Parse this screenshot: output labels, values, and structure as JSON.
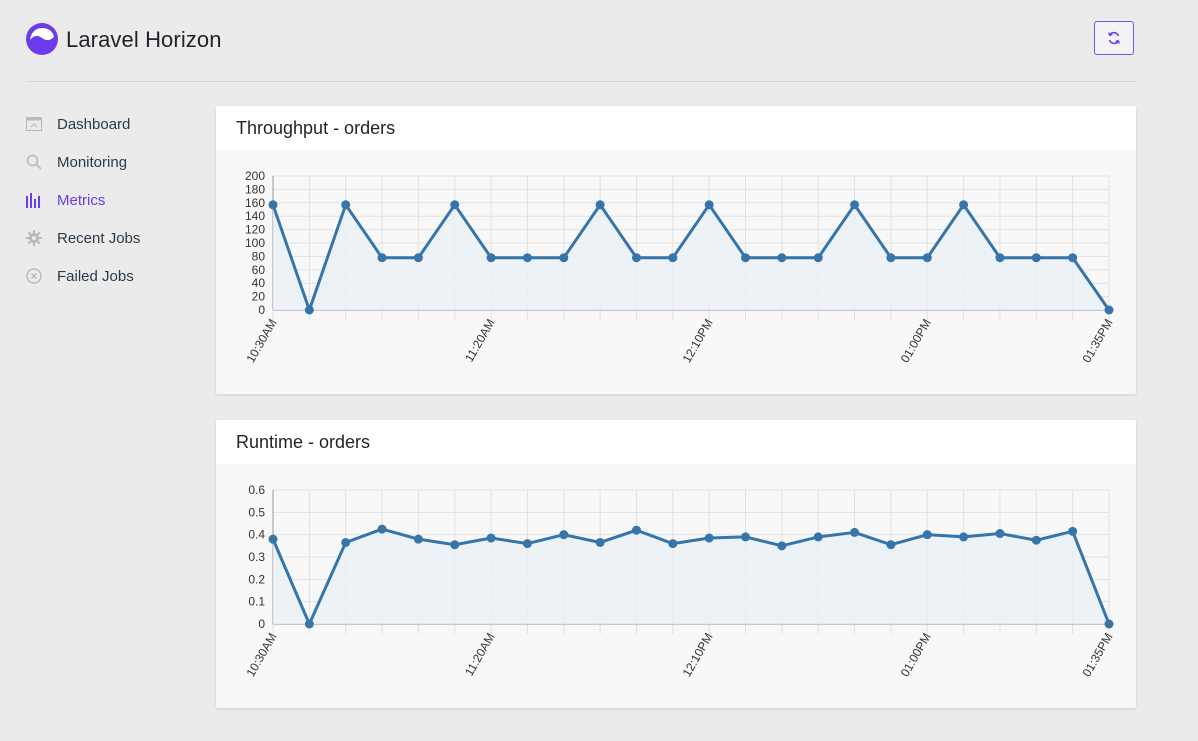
{
  "app": {
    "title": "Laravel Horizon"
  },
  "header": {
    "refresh_icon": "refresh-icon",
    "accent": "#6c3cec"
  },
  "sidebar": {
    "items": [
      {
        "label": "Dashboard",
        "icon": "dashboard-icon",
        "active": false
      },
      {
        "label": "Monitoring",
        "icon": "search-icon",
        "active": false
      },
      {
        "label": "Metrics",
        "icon": "bar-chart-icon",
        "active": true
      },
      {
        "label": "Recent Jobs",
        "icon": "gear-icon",
        "active": false
      },
      {
        "label": "Failed Jobs",
        "icon": "x-circle-icon",
        "active": false
      }
    ]
  },
  "chart_data": [
    {
      "type": "line",
      "title": "Throughput - orders",
      "x": [
        "10:30AM",
        "",
        "",
        "",
        "",
        "",
        "11:20AM",
        "",
        "",
        "",
        "",
        "",
        "12:10PM",
        "",
        "",
        "",
        "",
        "",
        "01:00PM",
        "",
        "",
        "",
        "",
        "01:35PM"
      ],
      "series": [
        {
          "values": [
            157,
            0,
            157,
            78,
            78,
            157,
            78,
            78,
            78,
            157,
            78,
            78,
            157,
            78,
            78,
            78,
            157,
            78,
            78,
            157,
            78,
            78,
            78,
            0
          ]
        }
      ],
      "yticks": [
        0,
        20,
        40,
        60,
        80,
        100,
        120,
        140,
        160,
        180,
        200
      ],
      "ylim": [
        0,
        200
      ],
      "grid": true,
      "line_color": "#3575aa",
      "fill_color": "#eaf0f6"
    },
    {
      "type": "line",
      "title": "Runtime - orders",
      "x": [
        "10:30AM",
        "",
        "",
        "",
        "",
        "",
        "11:20AM",
        "",
        "",
        "",
        "",
        "",
        "12:10PM",
        "",
        "",
        "",
        "",
        "",
        "01:00PM",
        "",
        "",
        "",
        "",
        "01:35PM"
      ],
      "series": [
        {
          "values": [
            0.38,
            0,
            0.365,
            0.425,
            0.38,
            0.355,
            0.385,
            0.36,
            0.4,
            0.365,
            0.42,
            0.36,
            0.385,
            0.39,
            0.35,
            0.39,
            0.41,
            0.355,
            0.4,
            0.39,
            0.405,
            0.375,
            0.415,
            0
          ]
        }
      ],
      "yticks": [
        0,
        0.1,
        0.2,
        0.3,
        0.4,
        0.5,
        0.6
      ],
      "ylim": [
        0,
        0.6
      ],
      "grid": true,
      "line_color": "#3575aa",
      "fill_color": "#eaf0f6"
    }
  ]
}
